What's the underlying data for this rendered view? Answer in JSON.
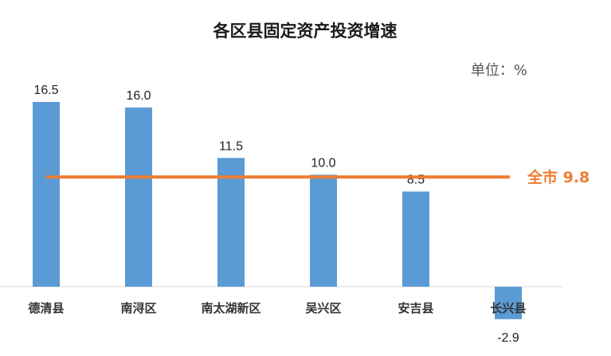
{
  "title": "各区县固定资产投资增速",
  "unit_label": "单位：%",
  "chart_data": {
    "type": "bar",
    "title": "各区县固定资产投资增速",
    "unit": "单位：%",
    "categories": [
      "德清县",
      "南浔区",
      "南太湖新区",
      "吴兴区",
      "安吉县",
      "长兴县"
    ],
    "values": [
      16.5,
      16.0,
      11.5,
      10.0,
      8.5,
      -2.9
    ],
    "value_labels": [
      "16.5",
      "16.0",
      "11.5",
      "10.0",
      "8.5",
      "-2.9"
    ],
    "ylim": [
      -3,
      18
    ],
    "grid": false,
    "bar_color": "#5B9BD5",
    "reference_line": {
      "label": "全市 9.8",
      "value": 9.8,
      "color": "#ED7D31"
    }
  }
}
